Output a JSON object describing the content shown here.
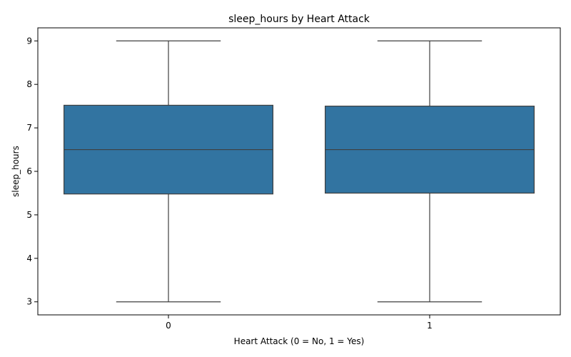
{
  "chart_data": {
    "type": "box",
    "title": "sleep_hours by Heart Attack",
    "xlabel": "Heart Attack (0 = No, 1 = Yes)",
    "ylabel": "sleep_hours",
    "categories": [
      "0",
      "1"
    ],
    "boxes": [
      {
        "category": "0",
        "min": 3.0,
        "q1": 5.48,
        "median": 6.5,
        "q3": 7.52,
        "max": 9.0
      },
      {
        "category": "1",
        "min": 3.0,
        "q1": 5.5,
        "median": 6.5,
        "q3": 7.5,
        "max": 9.0
      }
    ],
    "yticks": [
      3,
      4,
      5,
      6,
      7,
      8,
      9
    ],
    "ylim": [
      2.7,
      9.3
    ],
    "box_color": "#3274a1",
    "line_color": "#3f3f3f",
    "grid": false,
    "legend": "none"
  }
}
